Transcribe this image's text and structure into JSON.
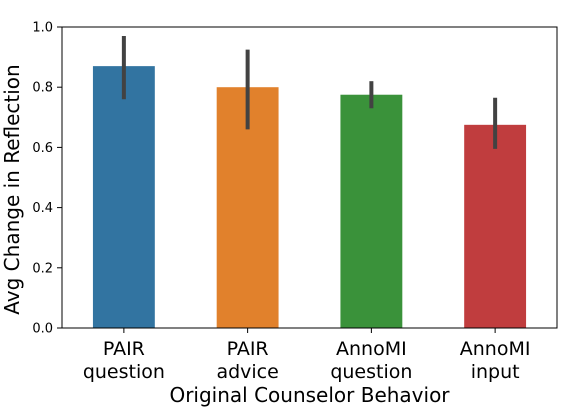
{
  "chart_data": {
    "type": "bar",
    "title": "",
    "xlabel": "Original Counselor Behavior",
    "ylabel": "Avg Change in Reflection",
    "ylim": [
      0.0,
      1.0
    ],
    "yticks": [
      0.0,
      0.2,
      0.4,
      0.6,
      0.8,
      1.0
    ],
    "ytick_labels": [
      "0.0",
      "0.2",
      "0.4",
      "0.6",
      "0.8",
      "1.0"
    ],
    "categories": [
      "PAIR\nquestion",
      "PAIR\nadvice",
      "AnnoMI\nquestion",
      "AnnoMI\ninput"
    ],
    "values": [
      0.87,
      0.8,
      0.775,
      0.675
    ],
    "error_low": [
      0.76,
      0.66,
      0.73,
      0.595
    ],
    "error_high": [
      0.97,
      0.925,
      0.82,
      0.765
    ],
    "colors": [
      "#3274a1",
      "#e1812c",
      "#3a923a",
      "#c03d3e"
    ],
    "errorbar_color": "#424242",
    "grid": false,
    "legend": "none"
  }
}
